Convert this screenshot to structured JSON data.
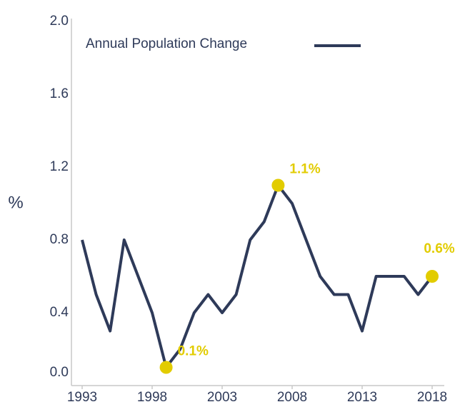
{
  "chart_data": {
    "type": "line",
    "legend": "Annual Population Change",
    "y_label": "%",
    "x": [
      1993,
      1994,
      1995,
      1996,
      1997,
      1998,
      1999,
      2000,
      2001,
      2002,
      2003,
      2004,
      2005,
      2006,
      2007,
      2008,
      2009,
      2010,
      2011,
      2012,
      2013,
      2014,
      2015,
      2016,
      2017,
      2018
    ],
    "values": [
      0.8,
      0.5,
      0.3,
      0.8,
      0.6,
      0.4,
      0.1,
      0.2,
      0.4,
      0.5,
      0.4,
      0.5,
      0.8,
      0.9,
      1.1,
      1.0,
      0.8,
      0.6,
      0.5,
      0.5,
      0.3,
      0.6,
      0.6,
      0.6,
      0.5,
      0.6
    ],
    "value_labels": [
      null,
      null,
      null,
      null,
      null,
      null,
      "0.1%",
      null,
      null,
      null,
      null,
      null,
      null,
      null,
      "1.1%",
      null,
      null,
      null,
      null,
      null,
      null,
      null,
      null,
      null,
      null,
      "0.6%"
    ],
    "color": "#2e3a59",
    "highlight_color": "#e2cc00",
    "xlim": [
      1993,
      2018
    ],
    "xticks": [
      1993,
      1998,
      2003,
      2008,
      2013,
      2018
    ],
    "ylim": [
      0,
      2
    ],
    "yticks": [
      {
        "value": 0,
        "label": "0.0"
      },
      0.4,
      0.8,
      1.2,
      1.6,
      {
        "value": 2,
        "label": "2.0"
      }
    ],
    "grid": false
  }
}
